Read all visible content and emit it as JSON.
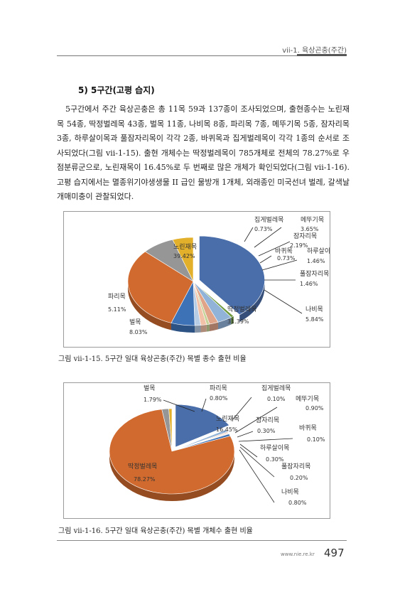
{
  "header": {
    "running_title": "vii-1. 육상곤충(주간)"
  },
  "section": {
    "title": "5) 5구간(고평 습지)"
  },
  "body": {
    "lines": [
      "5구간에서 주간 육상곤충은 총 11목 59과 137종이 조사되었으며, 출현종수는 노린재",
      "목 54종, 딱정벌레목 43종, 벌목 11종, 나비목 8종, 파리목 7종, 메뚜기목 5종, 잠자리목",
      "3종, 하루살이목과 풀잠자리목이 각각 2종, 바퀴목과 집게벌레목이 각각 1종의 순서로",
      "조사되었다(그림 vii-1-15). 출현 개체수는 딱정벌레목이 785개체로 전체의 78.27%로",
      "우점분류군으로, 노린재목이 16.45%로 두 번째로 많은 개체가 확인되었다(그림",
      "vii-1-16). 고평 습지에서는 멸종위기야생생물 II 급인 물방개 1개체, 외래종인 미국선녀",
      "벌레, 갈색날개매미충이 관찰되었다."
    ]
  },
  "figure1": {
    "caption": "그림 vii-1-15. 5구간 일대 육상곤충(주간) 목별 종수 출현 비율",
    "chart_data": {
      "type": "pie",
      "categories": [
        "노린재목",
        "집게벌레목",
        "메뚜기목",
        "잠자리목",
        "바퀴목",
        "하루살이목",
        "풀잠자리목",
        "나비목",
        "딱정벌레목",
        "벌목",
        "파리목"
      ],
      "values": [
        39.42,
        0.73,
        3.65,
        2.19,
        0.73,
        1.46,
        1.46,
        5.84,
        31.39,
        8.03,
        5.11
      ],
      "labels": [
        "39.42%",
        "0.73%",
        "3.65%",
        "2.19%",
        "0.73%",
        "1.46%",
        "1.46%",
        "5.84%",
        "31.39%",
        "8.03%",
        "5.11%"
      ],
      "colors": [
        "#4a6ea9",
        "#6e9a3c",
        "#92b3d8",
        "#e0a488",
        "#c6d398",
        "#f2c2a8",
        "#b7cde6",
        "#3e72b7",
        "#d06a2e",
        "#969696",
        "#e3b02b"
      ]
    }
  },
  "figure2": {
    "caption": "그림 vii-1-16. 5구간 일대 육상곤충(주간) 목별 개체수 출현 비율",
    "chart_data": {
      "type": "pie",
      "categories": [
        "노린재목",
        "집게벌레목",
        "메뚜기목",
        "잠자리목",
        "바퀴목",
        "하루살이목",
        "풀잠자리목",
        "나비목",
        "딱정벌레목",
        "벌목",
        "파리목"
      ],
      "values": [
        16.45,
        0.1,
        0.9,
        0.3,
        0.1,
        0.3,
        0.2,
        0.8,
        78.27,
        1.79,
        0.8
      ],
      "labels": [
        "16.45%",
        "0.10%",
        "0.90%",
        "0.30%",
        "0.10%",
        "0.30%",
        "0.20%",
        "0.80%",
        "78.27%",
        "1.79%",
        "0.80%"
      ],
      "colors": [
        "#4a6ea9",
        "#6e9a3c",
        "#92b3d8",
        "#e0a488",
        "#c6d398",
        "#f2c2a8",
        "#b7cde6",
        "#3e72b7",
        "#d06a2e",
        "#969696",
        "#e3b02b"
      ]
    }
  },
  "footer": {
    "url": "www.nie.re.kr",
    "page_number": "497"
  }
}
